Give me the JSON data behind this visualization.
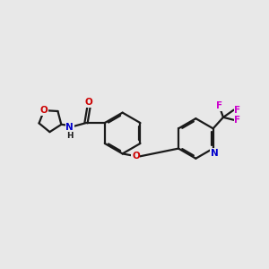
{
  "bg_color": "#e8e8e8",
  "bond_color": "#1a1a1a",
  "O_color": "#cc0000",
  "N_color": "#0000cc",
  "F_color": "#cc00cc",
  "C_color": "#1a1a1a",
  "bond_lw": 1.6,
  "dbo": 0.055,
  "fs": 7.5,
  "xlim": [
    0,
    10
  ],
  "ylim": [
    2,
    8
  ]
}
